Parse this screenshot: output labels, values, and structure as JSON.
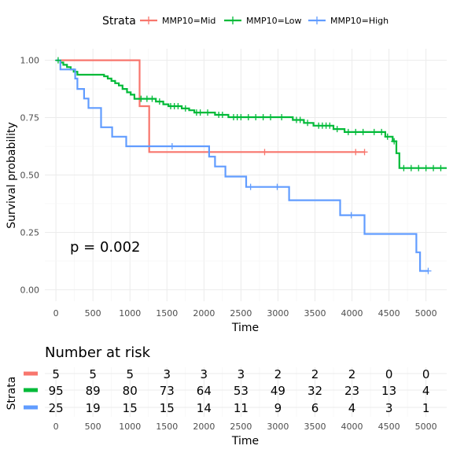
{
  "chart_data": [
    {
      "type": "line",
      "subtype": "kaplan-meier",
      "legend": {
        "title": "Strata",
        "position": "top"
      },
      "xlabel": "Time",
      "ylabel": "Survival probability",
      "xlim": [
        -150,
        5280
      ],
      "ylim": [
        -0.05,
        1.05
      ],
      "x_ticks": [
        0,
        500,
        1000,
        1500,
        2000,
        2500,
        3000,
        3500,
        4000,
        4500,
        5000
      ],
      "y_ticks": [
        0.0,
        0.25,
        0.5,
        0.75,
        1.0
      ],
      "y_tick_labels": [
        "0.00",
        "0.25",
        "0.50",
        "0.75",
        "1.00"
      ],
      "grid": true,
      "annotation": "p = 0.002",
      "series": [
        {
          "name": "MMP10=Mid",
          "color": "#F8766D",
          "steps": [
            [
              0,
              1.0
            ],
            [
              1130,
              1.0
            ],
            [
              1130,
              0.8
            ],
            [
              1260,
              0.8
            ],
            [
              1260,
              0.6
            ],
            [
              4170,
              0.6
            ]
          ],
          "censors": [
            [
              2820,
              0.6
            ],
            [
              4050,
              0.6
            ],
            [
              4170,
              0.6
            ]
          ]
        },
        {
          "name": "MMP10=Low",
          "color": "#00BA38",
          "steps": [
            [
              0,
              1.0
            ],
            [
              60,
              1.0
            ],
            [
              60,
              0.99
            ],
            [
              100,
              0.99
            ],
            [
              100,
              0.98
            ],
            [
              150,
              0.98
            ],
            [
              150,
              0.97
            ],
            [
              200,
              0.97
            ],
            [
              200,
              0.96
            ],
            [
              240,
              0.96
            ],
            [
              240,
              0.95
            ],
            [
              290,
              0.95
            ],
            [
              290,
              0.937
            ],
            [
              650,
              0.937
            ],
            [
              650,
              0.93
            ],
            [
              700,
              0.93
            ],
            [
              700,
              0.92
            ],
            [
              750,
              0.92
            ],
            [
              750,
              0.91
            ],
            [
              800,
              0.91
            ],
            [
              800,
              0.9
            ],
            [
              850,
              0.9
            ],
            [
              850,
              0.89
            ],
            [
              900,
              0.89
            ],
            [
              900,
              0.875
            ],
            [
              960,
              0.875
            ],
            [
              960,
              0.86
            ],
            [
              1010,
              0.86
            ],
            [
              1010,
              0.85
            ],
            [
              1060,
              0.85
            ],
            [
              1060,
              0.832
            ],
            [
              1350,
              0.832
            ],
            [
              1350,
              0.82
            ],
            [
              1450,
              0.82
            ],
            [
              1450,
              0.808
            ],
            [
              1520,
              0.808
            ],
            [
              1520,
              0.8
            ],
            [
              1700,
              0.8
            ],
            [
              1700,
              0.79
            ],
            [
              1800,
              0.79
            ],
            [
              1800,
              0.782
            ],
            [
              1870,
              0.782
            ],
            [
              1870,
              0.772
            ],
            [
              2150,
              0.772
            ],
            [
              2150,
              0.762
            ],
            [
              2330,
              0.762
            ],
            [
              2330,
              0.752
            ],
            [
              3200,
              0.752
            ],
            [
              3200,
              0.74
            ],
            [
              3350,
              0.74
            ],
            [
              3350,
              0.727
            ],
            [
              3480,
              0.727
            ],
            [
              3480,
              0.715
            ],
            [
              3750,
              0.715
            ],
            [
              3750,
              0.7
            ],
            [
              3900,
              0.7
            ],
            [
              3900,
              0.687
            ],
            [
              4450,
              0.687
            ],
            [
              4450,
              0.667
            ],
            [
              4550,
              0.667
            ],
            [
              4550,
              0.647
            ],
            [
              4600,
              0.647
            ],
            [
              4600,
              0.595
            ],
            [
              4640,
              0.595
            ],
            [
              4640,
              0.53
            ],
            [
              5280,
              0.53
            ]
          ],
          "censors": [
            [
              30,
              1.0
            ],
            [
              1150,
              0.832
            ],
            [
              1230,
              0.832
            ],
            [
              1300,
              0.832
            ],
            [
              1400,
              0.82
            ],
            [
              1550,
              0.8
            ],
            [
              1600,
              0.8
            ],
            [
              1650,
              0.8
            ],
            [
              1750,
              0.79
            ],
            [
              1900,
              0.772
            ],
            [
              1950,
              0.772
            ],
            [
              2050,
              0.772
            ],
            [
              2200,
              0.762
            ],
            [
              2250,
              0.762
            ],
            [
              2400,
              0.752
            ],
            [
              2450,
              0.752
            ],
            [
              2500,
              0.752
            ],
            [
              2600,
              0.752
            ],
            [
              2700,
              0.752
            ],
            [
              2800,
              0.752
            ],
            [
              2900,
              0.752
            ],
            [
              3050,
              0.752
            ],
            [
              3250,
              0.74
            ],
            [
              3300,
              0.74
            ],
            [
              3400,
              0.727
            ],
            [
              3550,
              0.715
            ],
            [
              3600,
              0.715
            ],
            [
              3650,
              0.715
            ],
            [
              3700,
              0.715
            ],
            [
              3800,
              0.7
            ],
            [
              3950,
              0.687
            ],
            [
              4050,
              0.687
            ],
            [
              4150,
              0.687
            ],
            [
              4300,
              0.687
            ],
            [
              4400,
              0.687
            ],
            [
              4480,
              0.667
            ],
            [
              4570,
              0.647
            ],
            [
              4700,
              0.53
            ],
            [
              4800,
              0.53
            ],
            [
              4900,
              0.53
            ],
            [
              5000,
              0.53
            ],
            [
              5100,
              0.53
            ],
            [
              5200,
              0.53
            ]
          ]
        },
        {
          "name": "MMP10=High",
          "color": "#619CFF",
          "steps": [
            [
              0,
              1.0
            ],
            [
              60,
              1.0
            ],
            [
              60,
              0.96
            ],
            [
              260,
              0.96
            ],
            [
              260,
              0.92
            ],
            [
              290,
              0.92
            ],
            [
              290,
              0.875
            ],
            [
              380,
              0.875
            ],
            [
              380,
              0.833
            ],
            [
              440,
              0.833
            ],
            [
              440,
              0.792
            ],
            [
              610,
              0.792
            ],
            [
              610,
              0.708
            ],
            [
              760,
              0.708
            ],
            [
              760,
              0.667
            ],
            [
              950,
              0.667
            ],
            [
              950,
              0.625
            ],
            [
              2070,
              0.625
            ],
            [
              2070,
              0.58
            ],
            [
              2150,
              0.58
            ],
            [
              2150,
              0.537
            ],
            [
              2290,
              0.537
            ],
            [
              2290,
              0.493
            ],
            [
              2570,
              0.493
            ],
            [
              2570,
              0.448
            ],
            [
              3150,
              0.448
            ],
            [
              3150,
              0.39
            ],
            [
              3840,
              0.39
            ],
            [
              3840,
              0.325
            ],
            [
              4170,
              0.325
            ],
            [
              4170,
              0.243
            ],
            [
              4870,
              0.243
            ],
            [
              4870,
              0.163
            ],
            [
              4920,
              0.163
            ],
            [
              4920,
              0.082
            ],
            [
              5030,
              0.082
            ]
          ],
          "censors": [
            [
              1570,
              0.625
            ],
            [
              2630,
              0.448
            ],
            [
              2990,
              0.448
            ],
            [
              3990,
              0.325
            ],
            [
              5030,
              0.082
            ]
          ]
        }
      ]
    },
    {
      "type": "table",
      "title": "Number at risk",
      "ylabel": "Strata",
      "xlabel": "Time",
      "x_ticks": [
        0,
        500,
        1000,
        1500,
        2000,
        2500,
        3000,
        3500,
        4000,
        4500,
        5000
      ],
      "rows": [
        {
          "name": "MMP10=Mid",
          "color": "#F8766D",
          "values": [
            5,
            5,
            5,
            3,
            3,
            3,
            2,
            2,
            2,
            0,
            0
          ]
        },
        {
          "name": "MMP10=Low",
          "color": "#00BA38",
          "values": [
            95,
            89,
            80,
            73,
            64,
            53,
            49,
            32,
            23,
            13,
            4
          ]
        },
        {
          "name": "MMP10=High",
          "color": "#619CFF",
          "values": [
            25,
            19,
            15,
            15,
            14,
            11,
            9,
            6,
            4,
            3,
            1
          ]
        }
      ]
    }
  ]
}
